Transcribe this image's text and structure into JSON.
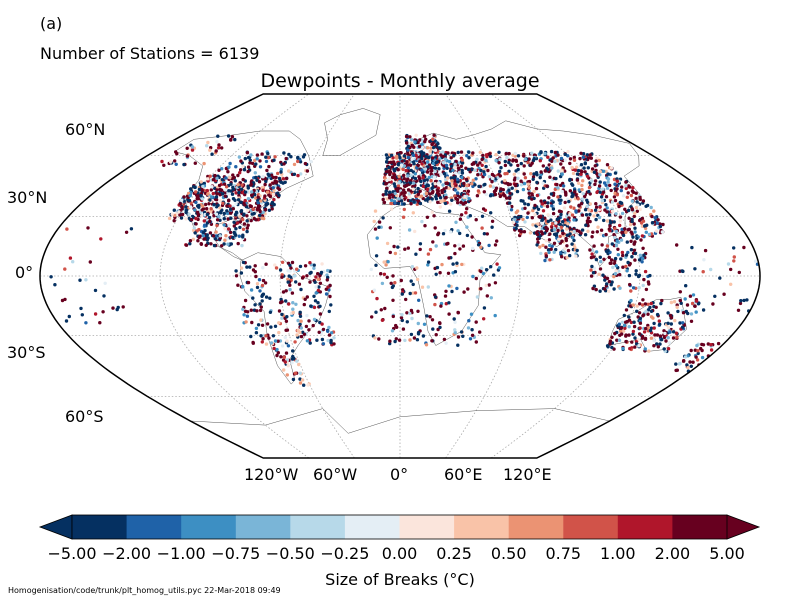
{
  "panel_label": "(a)",
  "stations_text": "Number of Stations = 6139",
  "title": "Dewpoints - Monthly average",
  "lat_labels": [
    "60°N",
    "30°N",
    "0°",
    "30°S",
    "60°S"
  ],
  "lon_labels": [
    "120°W",
    "60°W",
    "0°",
    "60°E",
    "120°E"
  ],
  "colorbar": {
    "label": "Size of Breaks ($^\\circ$C)",
    "label_display": "Size of Breaks (°C)",
    "ticks": [
      "−5.00",
      "−2.00",
      "−1.00",
      "−0.75",
      "−0.50",
      "−0.25",
      "0.00",
      "0.25",
      "0.50",
      "0.75",
      "1.00",
      "2.00",
      "5.00"
    ],
    "colors": [
      "#053061",
      "#1f62a8",
      "#3d8fc3",
      "#7ab5d7",
      "#b7d9e9",
      "#e4eef5",
      "#fbe5dc",
      "#f9c3a8",
      "#eb9373",
      "#d15349",
      "#b0162b",
      "#67001f"
    ]
  },
  "footer": "Homogenisation/code/trunk/plt_homog_utils.pyc   22-Mar-2018 09:49"
}
